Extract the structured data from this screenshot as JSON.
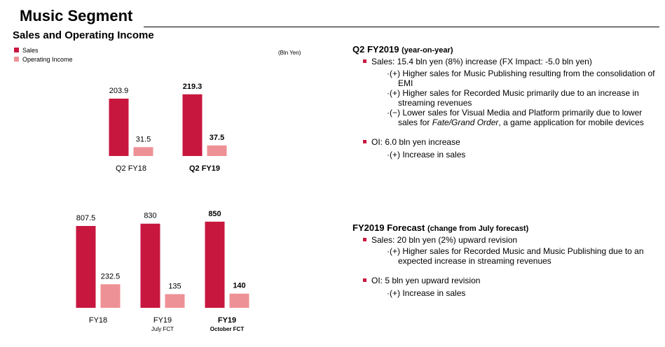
{
  "header": {
    "title": "Music Segment",
    "subtitle": "Sales and Operating Income"
  },
  "legend": [
    {
      "name": "Sales",
      "color": "#c8173f"
    },
    {
      "name": "Operating Income",
      "color": "#ee9196"
    }
  ],
  "unit_label": "(Bln Yen)",
  "colors": {
    "sales": "#c8173f",
    "oi": "#ee9196",
    "bullet": "#c8173f"
  },
  "chart_data": [
    {
      "type": "bar",
      "categories": [
        "Q2 FY18",
        "Q2 FY19"
      ],
      "category_sublabels": [
        "",
        ""
      ],
      "bold_categories": [
        false,
        true
      ],
      "series": [
        {
          "name": "Sales",
          "values": [
            203.9,
            219.3
          ],
          "labels": [
            "203.9",
            "219.3"
          ],
          "bold": [
            false,
            true
          ]
        },
        {
          "name": "Operating Income",
          "values": [
            31.5,
            37.5
          ],
          "labels": [
            "31.5",
            "37.5"
          ],
          "bold": [
            false,
            true
          ]
        }
      ],
      "ylim": [
        0,
        260
      ]
    },
    {
      "type": "bar",
      "categories": [
        "FY18",
        "FY19",
        "FY19"
      ],
      "category_sublabels": [
        "",
        "July FCT",
        "October FCT"
      ],
      "bold_categories": [
        false,
        false,
        true
      ],
      "series": [
        {
          "name": "Sales",
          "values": [
            807.5,
            830,
            850
          ],
          "labels": [
            "807.5",
            "830",
            "850"
          ],
          "bold": [
            false,
            false,
            true
          ]
        },
        {
          "name": "Operating Income",
          "values": [
            232.5,
            135,
            140
          ],
          "labels": [
            "232.5",
            "135",
            "140"
          ],
          "bold": [
            false,
            false,
            true
          ]
        }
      ],
      "ylim": [
        0,
        960
      ]
    }
  ],
  "q2": {
    "heading": "Q2 FY2019",
    "heading_note": "(year-on-year)",
    "sales": "Sales: 15.4 bln yen (8%) increase (FX Impact: -5.0 bln yen)",
    "sales_points": [
      "·(+) Higher sales for Music Publishing resulting from the consolidation of EMI",
      "·(+) Higher sales for Recorded Music primarily due to an increase in streaming revenues",
      "·(−) Lower sales for Visual Media and Platform primarily due to lower sales for Fate/Grand Order, a game application for mobile devices"
    ],
    "oi": "OI: 6.0 bln yen increase",
    "oi_points": [
      "·(+) Increase in sales"
    ]
  },
  "forecast": {
    "heading": "FY2019 Forecast",
    "heading_note": "(change from July forecast)",
    "sales": "Sales: 20 bln yen (2%) upward revision",
    "sales_points": [
      "·(+) Higher sales for Recorded Music and Music Publishing due to an expected increase in streaming revenues"
    ],
    "oi": "OI: 5 bln yen upward revision",
    "oi_points": [
      "·(+) Increase in sales"
    ]
  }
}
